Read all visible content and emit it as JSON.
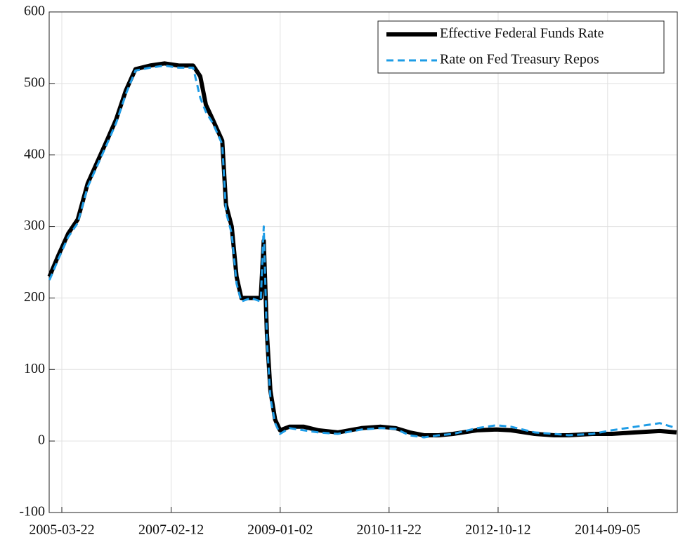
{
  "chart_data": {
    "type": "line",
    "x": [
      "2005-01-03",
      "2005-03-01",
      "2005-05-01",
      "2005-07-01",
      "2005-09-01",
      "2005-11-01",
      "2006-01-01",
      "2006-03-01",
      "2006-05-01",
      "2006-07-01",
      "2006-10-01",
      "2007-01-01",
      "2007-04-01",
      "2007-07-01",
      "2007-08-15",
      "2007-09-20",
      "2007-11-01",
      "2008-01-01",
      "2008-01-25",
      "2008-03-01",
      "2008-04-01",
      "2008-05-01",
      "2008-07-01",
      "2008-09-01",
      "2008-09-20",
      "2008-10-10",
      "2008-11-01",
      "2008-12-01",
      "2009-01-01",
      "2009-03-01",
      "2009-06-01",
      "2009-09-01",
      "2010-01-01",
      "2010-06-01",
      "2010-10-01",
      "2011-01-01",
      "2011-04-01",
      "2011-07-01",
      "2011-10-01",
      "2012-01-01",
      "2012-06-01",
      "2012-10-01",
      "2013-01-01",
      "2013-06-01",
      "2013-10-01",
      "2014-01-01",
      "2014-06-01",
      "2014-10-01",
      "2015-03-01",
      "2015-08-01",
      "2015-11-15"
    ],
    "series": [
      {
        "name": "Effective Federal Funds Rate",
        "color": "#000000",
        "dash": false,
        "values": [
          230,
          260,
          290,
          310,
          360,
          390,
          420,
          450,
          490,
          520,
          525,
          528,
          525,
          525,
          510,
          470,
          450,
          420,
          330,
          300,
          230,
          200,
          200,
          200,
          280,
          150,
          70,
          30,
          15,
          20,
          20,
          15,
          12,
          18,
          20,
          18,
          12,
          8,
          8,
          10,
          15,
          16,
          15,
          10,
          8,
          8,
          10,
          10,
          12,
          14,
          12
        ]
      },
      {
        "name": "Rate on Fed Treasury Repos",
        "color": "#1e9ce6",
        "dash": true,
        "values": [
          225,
          255,
          285,
          305,
          355,
          385,
          415,
          445,
          485,
          518,
          522,
          525,
          522,
          522,
          480,
          460,
          445,
          415,
          320,
          290,
          220,
          195,
          200,
          195,
          300,
          140,
          60,
          25,
          10,
          18,
          15,
          12,
          10,
          16,
          18,
          17,
          8,
          5,
          8,
          10,
          18,
          22,
          20,
          12,
          10,
          8,
          10,
          15,
          20,
          25,
          18
        ]
      }
    ],
    "xlim": [
      "2005-01-01",
      "2015-11-20"
    ],
    "xticks": [
      "2005-03-22",
      "2007-02-12",
      "2009-01-02",
      "2010-11-22",
      "2012-10-12",
      "2014-09-05"
    ],
    "ylim": [
      -100,
      600
    ],
    "yticks": [
      -100,
      0,
      100,
      200,
      300,
      400,
      500,
      600
    ],
    "grid": true,
    "legend": "upper right"
  }
}
